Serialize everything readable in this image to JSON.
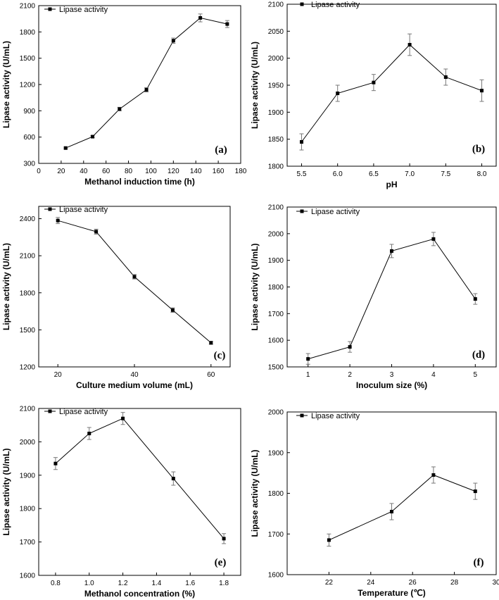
{
  "chart_data": [
    {
      "type": "line",
      "panel": "(a)",
      "legend": "Lipase activity",
      "xlabel": "Methanol induction time (h)",
      "ylabel": "Lipase activity (U/mL)",
      "xlim": [
        0,
        180
      ],
      "ylim": [
        300,
        2100
      ],
      "xticks": [
        0,
        20,
        40,
        60,
        80,
        100,
        120,
        140,
        160,
        180
      ],
      "yticks": [
        300,
        600,
        900,
        1200,
        1500,
        1800,
        2100
      ],
      "x": [
        24,
        48,
        72,
        96,
        120,
        144,
        168
      ],
      "y": [
        475,
        605,
        920,
        1140,
        1700,
        1960,
        1890
      ],
      "err": [
        10,
        12,
        20,
        25,
        30,
        45,
        40
      ]
    },
    {
      "type": "line",
      "panel": "(b)",
      "legend": "Lipase activity",
      "xlabel": "pH",
      "ylabel": "Lipase activity (U/mL)",
      "xlim": [
        5.3,
        8.2
      ],
      "ylim": [
        1800,
        2100
      ],
      "xticks": [
        5.5,
        6.0,
        6.5,
        7.0,
        7.5,
        8.0
      ],
      "xtick_labels": [
        "5.5",
        "6.0",
        "6.5",
        "7.0",
        "7.5",
        "8.0"
      ],
      "yticks": [
        1800,
        1850,
        1900,
        1950,
        2000,
        2050,
        2100
      ],
      "x": [
        5.5,
        6.0,
        6.5,
        7.0,
        7.5,
        8.0
      ],
      "y": [
        1845,
        1935,
        1955,
        2025,
        1965,
        1940
      ],
      "err": [
        15,
        15,
        15,
        20,
        15,
        20
      ]
    },
    {
      "type": "line",
      "panel": "(c)",
      "legend": "Lipase activity",
      "xlabel": "Culture medium volume (mL)",
      "ylabel": "Lipase activity (U/mL)",
      "xlim": [
        15,
        65
      ],
      "ylim": [
        1200,
        2500
      ],
      "xticks": [
        20,
        40,
        60
      ],
      "yticks": [
        1200,
        1500,
        1800,
        2100,
        2400
      ],
      "x": [
        20,
        30,
        40,
        50,
        60
      ],
      "y": [
        2385,
        2295,
        1930,
        1660,
        1395
      ],
      "err": [
        25,
        20,
        18,
        18,
        12
      ]
    },
    {
      "type": "line",
      "panel": "(d)",
      "legend": "Lipase activity",
      "xlabel": "Inoculum size (%)",
      "ylabel": "Lipase activity (U/mL)",
      "xlim": [
        0.5,
        5.5
      ],
      "ylim": [
        1500,
        2100
      ],
      "xticks": [
        1,
        2,
        3,
        4,
        5
      ],
      "yticks": [
        1500,
        1600,
        1700,
        1800,
        1900,
        2000,
        2100
      ],
      "x": [
        1,
        2,
        3,
        4,
        5
      ],
      "y": [
        1530,
        1575,
        1935,
        1980,
        1755
      ],
      "err": [
        20,
        20,
        25,
        25,
        20
      ]
    },
    {
      "type": "line",
      "panel": "(e)",
      "legend": "Lipase activity",
      "xlabel": "Methanol concentration (%)",
      "ylabel": "Lipase activity (U/mL)",
      "xlim": [
        0.7,
        1.9
      ],
      "ylim": [
        1600,
        2100
      ],
      "xticks": [
        0.8,
        1.0,
        1.2,
        1.4,
        1.6,
        1.8
      ],
      "xtick_labels": [
        "0.8",
        "1.0",
        "1.2",
        "1.4",
        "1.6",
        "1.8"
      ],
      "yticks": [
        1600,
        1700,
        1800,
        1900,
        2000,
        2100
      ],
      "x": [
        0.8,
        1.0,
        1.2,
        1.5,
        1.8
      ],
      "y": [
        1935,
        2025,
        2070,
        1890,
        1710
      ],
      "err": [
        18,
        18,
        18,
        20,
        15
      ]
    },
    {
      "type": "line",
      "panel": "(f)",
      "legend": "Lipase activity",
      "xlabel": "Temperature (℃)",
      "ylabel": "Lipase activity (U/mL)",
      "xlim": [
        20,
        30
      ],
      "ylim": [
        1600,
        2000
      ],
      "xticks": [
        22,
        24,
        26,
        28,
        30
      ],
      "yticks": [
        1600,
        1700,
        1800,
        1900,
        2000
      ],
      "x": [
        22,
        25,
        27,
        29
      ],
      "y": [
        1685,
        1755,
        1845,
        1805
      ],
      "err": [
        15,
        20,
        20,
        20
      ]
    }
  ]
}
